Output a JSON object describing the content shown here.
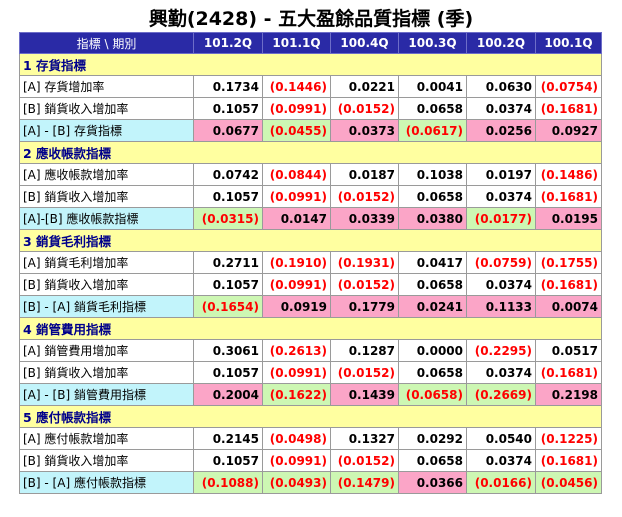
{
  "title": "興勤(2428) -  五大盈餘品質指標 (季)",
  "header": {
    "label": "指標 \\ 期別",
    "periods": [
      "101.2Q",
      "101.1Q",
      "100.4Q",
      "100.3Q",
      "100.2Q",
      "100.1Q"
    ]
  },
  "colors": {
    "positive_indicator_bg": "#fba5c7",
    "negative_indicator_bg": "#cdf7b3",
    "header_bg": "#2a2aa6",
    "section_bg": "#ffffa0",
    "indicator_label_bg": "#c2f4fb"
  },
  "sections": [
    {
      "title": "1 存貨指標",
      "rows": [
        {
          "label": "[A] 存貨增加率",
          "values": [
            "0.1734",
            "(0.1446)",
            "0.0221",
            "0.0041",
            "0.0630",
            "(0.0754)"
          ]
        },
        {
          "label": "[B] 銷貨收入增加率",
          "values": [
            "0.1057",
            "(0.0991)",
            "(0.0152)",
            "0.0658",
            "0.0374",
            "(0.1681)"
          ]
        },
        {
          "label": "[A] - [B] 存貨指標",
          "values": [
            "0.0677",
            "(0.0455)",
            "0.0373",
            "(0.0617)",
            "0.0256",
            "0.0927"
          ]
        }
      ]
    },
    {
      "title": "2 應收帳款指標",
      "rows": [
        {
          "label": "[A] 應收帳款增加率",
          "values": [
            "0.0742",
            "(0.0844)",
            "0.0187",
            "0.1038",
            "0.0197",
            "(0.1486)"
          ]
        },
        {
          "label": "[B] 銷貨收入增加率",
          "values": [
            "0.1057",
            "(0.0991)",
            "(0.0152)",
            "0.0658",
            "0.0374",
            "(0.1681)"
          ]
        },
        {
          "label": "[A]-[B] 應收帳款指標",
          "values": [
            "(0.0315)",
            "0.0147",
            "0.0339",
            "0.0380",
            "(0.0177)",
            "0.0195"
          ]
        }
      ]
    },
    {
      "title": "3 銷貨毛利指標",
      "rows": [
        {
          "label": "[A] 銷貨毛利增加率",
          "values": [
            "0.2711",
            "(0.1910)",
            "(0.1931)",
            "0.0417",
            "(0.0759)",
            "(0.1755)"
          ]
        },
        {
          "label": "[B] 銷貨收入增加率",
          "values": [
            "0.1057",
            "(0.0991)",
            "(0.0152)",
            "0.0658",
            "0.0374",
            "(0.1681)"
          ]
        },
        {
          "label": "[B] - [A] 銷貨毛利指標",
          "values": [
            "(0.1654)",
            "0.0919",
            "0.1779",
            "0.0241",
            "0.1133",
            "0.0074"
          ]
        }
      ]
    },
    {
      "title": "4 銷管費用指標",
      "rows": [
        {
          "label": "[A] 銷管費用增加率",
          "values": [
            "0.3061",
            "(0.2613)",
            "0.1287",
            "0.0000",
            "(0.2295)",
            "0.0517"
          ]
        },
        {
          "label": "[B] 銷貨收入增加率",
          "values": [
            "0.1057",
            "(0.0991)",
            "(0.0152)",
            "0.0658",
            "0.0374",
            "(0.1681)"
          ]
        },
        {
          "label": "[A] - [B] 銷管費用指標",
          "values": [
            "0.2004",
            "(0.1622)",
            "0.1439",
            "(0.0658)",
            "(0.2669)",
            "0.2198"
          ]
        }
      ]
    },
    {
      "title": "5 應付帳款指標",
      "rows": [
        {
          "label": "[A] 應付帳款增加率",
          "values": [
            "0.2145",
            "(0.0498)",
            "0.1327",
            "0.0292",
            "0.0540",
            "(0.1225)"
          ]
        },
        {
          "label": "[B] 銷貨收入增加率",
          "values": [
            "0.1057",
            "(0.0991)",
            "(0.0152)",
            "0.0658",
            "0.0374",
            "(0.1681)"
          ]
        },
        {
          "label": "[B] - [A] 應付帳款指標",
          "values": [
            "(0.1088)",
            "(0.0493)",
            "(0.1479)",
            "0.0366",
            "(0.0166)",
            "(0.0456)"
          ]
        }
      ]
    }
  ]
}
